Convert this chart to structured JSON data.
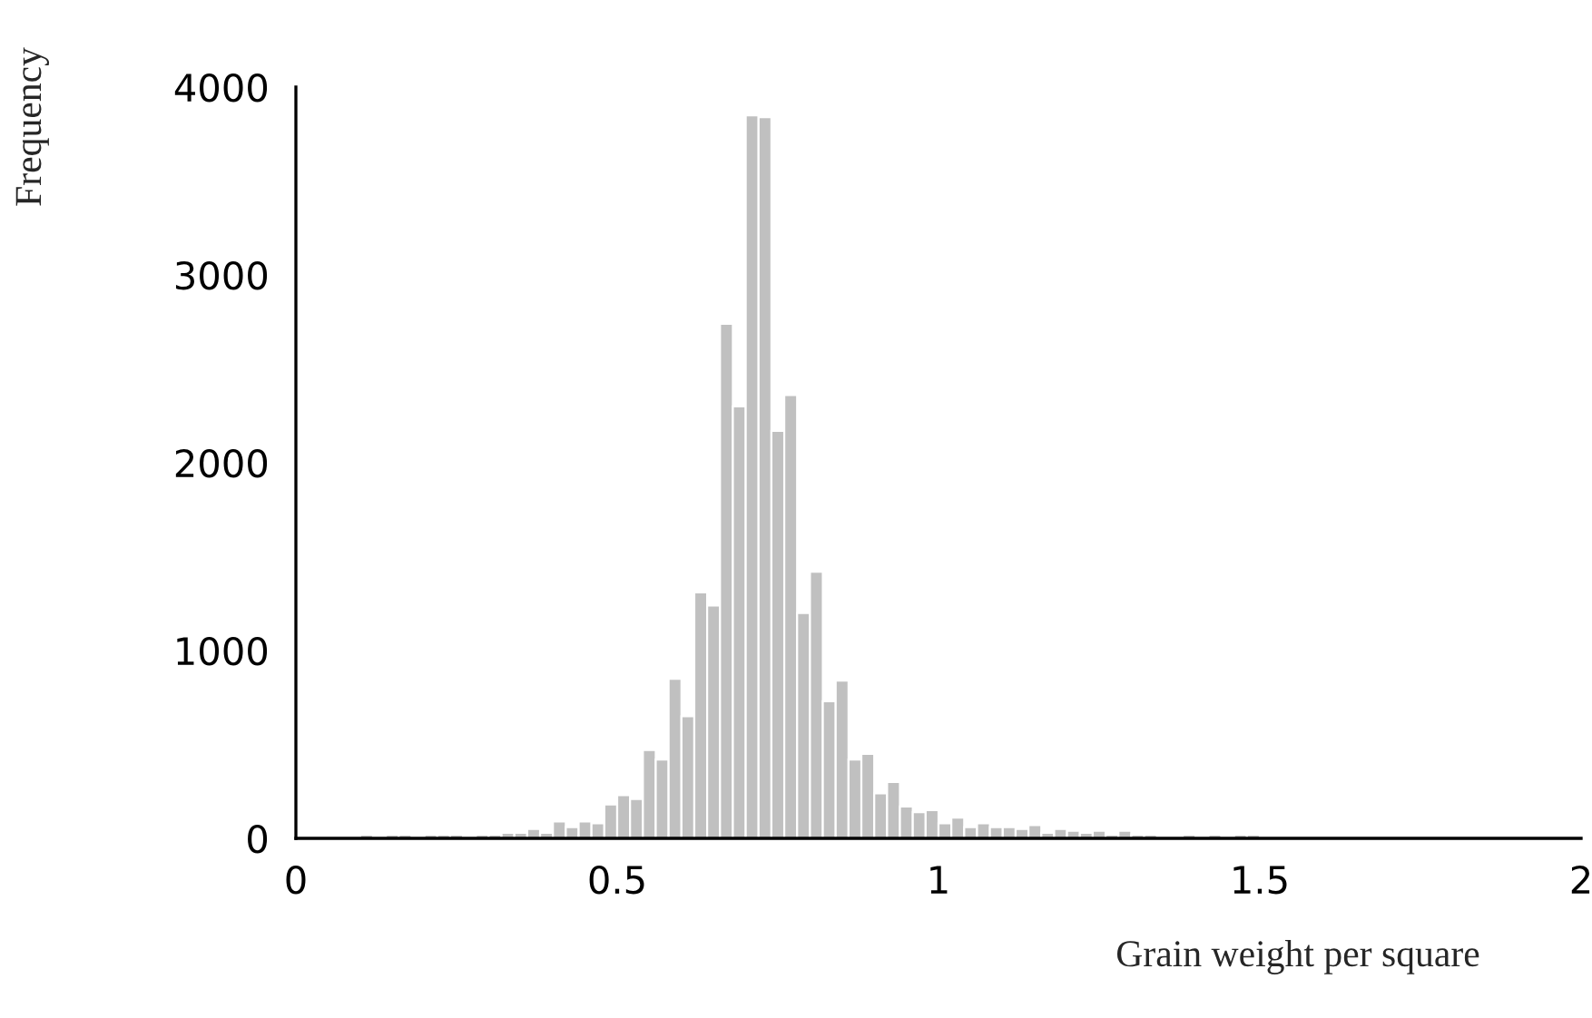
{
  "chart_data": {
    "type": "histogram",
    "xlabel": "Grain weight per square",
    "ylabel": "Frequency",
    "bins": [
      0,
      0.02,
      0.04,
      0.06,
      0.08,
      0.1,
      0.12,
      0.14,
      0.16,
      0.18,
      0.2,
      0.22,
      0.24,
      0.26,
      0.28,
      0.3,
      0.32,
      0.34,
      0.36,
      0.38,
      0.4,
      0.42,
      0.44,
      0.46,
      0.48,
      0.5,
      0.52,
      0.54,
      0.56,
      0.58,
      0.6,
      0.62,
      0.64,
      0.66,
      0.68,
      0.7,
      0.72,
      0.74,
      0.76,
      0.78,
      0.8,
      0.82,
      0.84,
      0.86,
      0.88,
      0.9,
      0.92,
      0.94,
      0.96,
      0.98,
      1,
      1.02,
      1.04,
      1.06,
      1.08,
      1.1,
      1.12,
      1.14,
      1.16,
      1.18,
      1.2,
      1.22,
      1.24,
      1.26,
      1.28,
      1.3,
      1.32,
      1.34,
      1.36,
      1.38,
      1.4,
      1.42,
      1.44,
      1.46,
      1.48,
      1.5
    ],
    "values": [
      0,
      0,
      0,
      0,
      0,
      20,
      0,
      20,
      20,
      0,
      20,
      20,
      20,
      0,
      20,
      20,
      30,
      30,
      50,
      30,
      90,
      60,
      90,
      80,
      180,
      230,
      210,
      470,
      420,
      850,
      650,
      1310,
      1240,
      2740,
      2300,
      3850,
      3840,
      2170,
      2360,
      1200,
      1420,
      730,
      840,
      420,
      450,
      240,
      300,
      170,
      140,
      150,
      80,
      110,
      60,
      80,
      60,
      60,
      50,
      70,
      30,
      50,
      40,
      30,
      40,
      20,
      40,
      20,
      20,
      0,
      0,
      20,
      0,
      20,
      0,
      20,
      20
    ],
    "color": "#c0c0c0",
    "xlim": [
      0,
      2
    ],
    "xticks": [
      0,
      0.5,
      1,
      1.5,
      2
    ],
    "ylim": [
      0,
      4000
    ],
    "yticks": [
      0,
      1000,
      2000,
      3000,
      4000
    ],
    "grid": false,
    "legend": false
  }
}
